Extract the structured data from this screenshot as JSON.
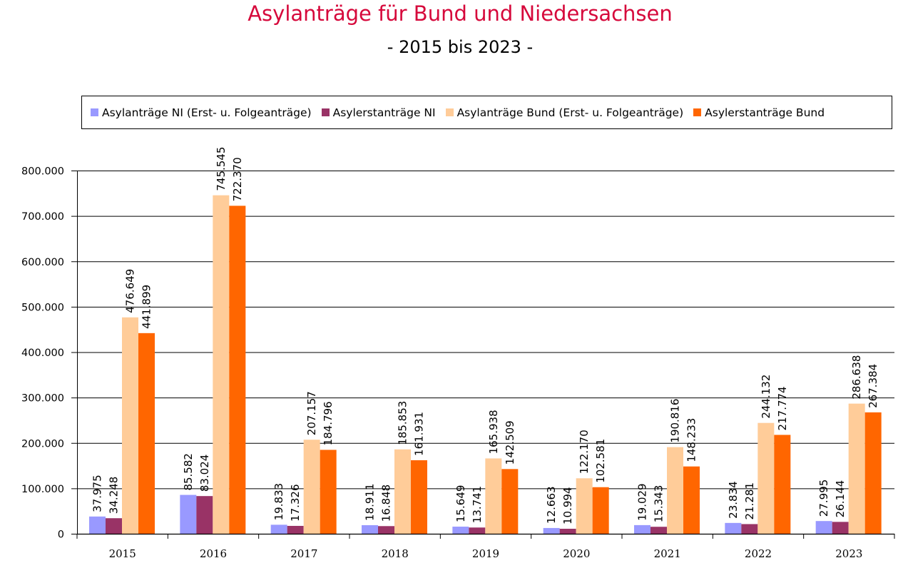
{
  "chart_data": {
    "type": "bar",
    "title": "Asylanträge für Bund und Niedersachsen",
    "subtitle": "- 2015 bis 2023 -",
    "xlabel": "",
    "ylabel": "",
    "ylim": [
      0,
      800000
    ],
    "yticks": [
      0,
      100000,
      200000,
      300000,
      400000,
      500000,
      600000,
      700000,
      800000
    ],
    "ytick_labels": [
      "0",
      "100.000",
      "200.000",
      "300.000",
      "400.000",
      "500.000",
      "600.000",
      "700.000",
      "800.000"
    ],
    "grid": true,
    "legend_position": "top",
    "categories": [
      "2015",
      "2016",
      "2017",
      "2018",
      "2019",
      "2020",
      "2021",
      "2022",
      "2023"
    ],
    "series": [
      {
        "name": "Asylanträge NI (Erst- u. Folgeanträge)",
        "color": "#9999ff",
        "values": [
          37975,
          85582,
          19833,
          18911,
          15649,
          12663,
          19029,
          23834,
          27995
        ],
        "labels": [
          "37.975",
          "85.582",
          "19.833",
          "18.911",
          "15.649",
          "12.663",
          "19.029",
          "23.834",
          "27.995"
        ]
      },
      {
        "name": "Asylerstanträge NI",
        "color": "#993366",
        "values": [
          34248,
          83024,
          17326,
          16848,
          13741,
          10994,
          15343,
          21281,
          26144
        ],
        "labels": [
          "34.248",
          "83.024",
          "17.326",
          "16.848",
          "13.741",
          "10.994",
          "15.343",
          "21.281",
          "26.144"
        ]
      },
      {
        "name": "Asylanträge Bund (Erst- u. Folgeanträge)",
        "color": "#ffcc99",
        "values": [
          476649,
          745545,
          207157,
          185853,
          165938,
          122170,
          190816,
          244132,
          286638
        ],
        "labels": [
          "476.649",
          "745.545",
          "207.157",
          "185.853",
          "165.938",
          "122.170",
          "190.816",
          "244.132",
          "286.638"
        ]
      },
      {
        "name": "Asylerstanträge Bund",
        "color": "#ff6600",
        "values": [
          441899,
          722370,
          184796,
          161931,
          142509,
          102581,
          148233,
          217774,
          267384
        ],
        "labels": [
          "441.899",
          "722.370",
          "184.796",
          "161.931",
          "142.509",
          "102.581",
          "148.233",
          "217.774",
          "267.384"
        ]
      }
    ]
  }
}
